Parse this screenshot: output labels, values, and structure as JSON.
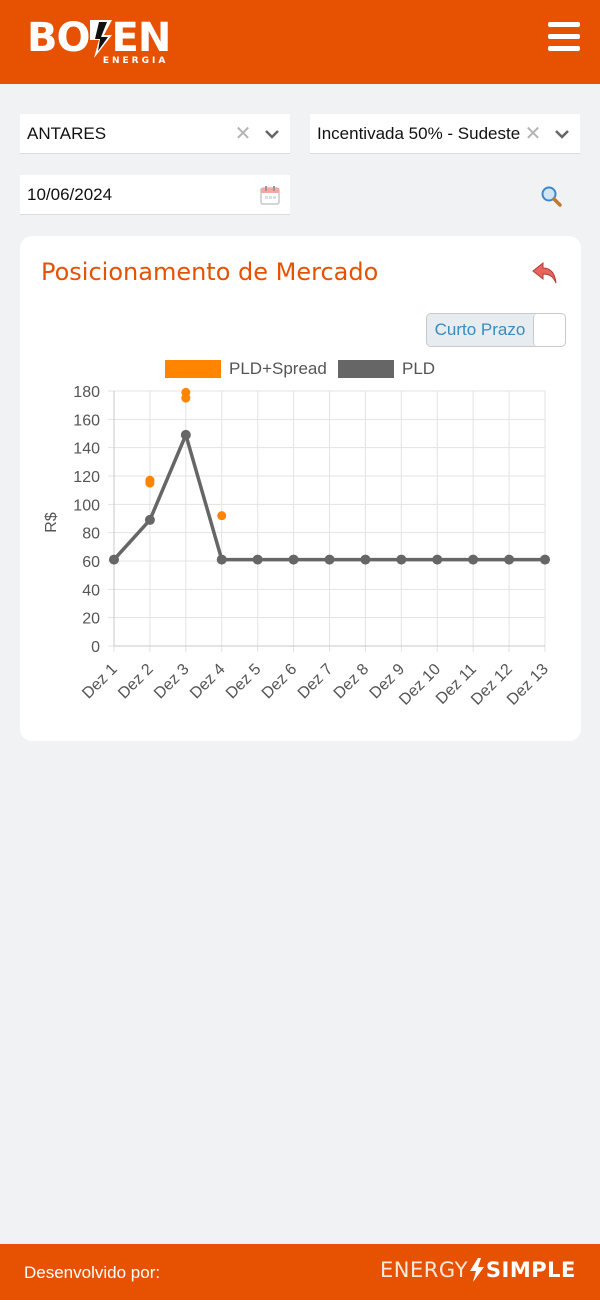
{
  "header": {
    "logo_text_left": "BO",
    "logo_text_right": "EN",
    "logo_subtitle": "ENERGIA",
    "menu_icon": "hamburger-menu-icon",
    "brand_color": "#e65202"
  },
  "filters": {
    "company": {
      "value": "ANTARES"
    },
    "energy_type": {
      "value": "Incentivada 50% - Sudeste"
    },
    "date": {
      "value": "10/06/2024"
    }
  },
  "card": {
    "title": "Posicionamento de Mercado",
    "toggle_label": "Curto Prazo"
  },
  "chart_data": {
    "type": "line",
    "categories": [
      "Dez 1",
      "Dez 2",
      "Dez 3",
      "Dez 4",
      "Dez 5",
      "Dez 6",
      "Dez 7",
      "Dez 8",
      "Dez 9",
      "Dez 10",
      "Dez 11",
      "Dez 12",
      "Dez 13"
    ],
    "ylabel": "R$",
    "ylim": [
      0,
      180
    ],
    "yticks": [
      0,
      20,
      40,
      60,
      80,
      100,
      120,
      140,
      160,
      180
    ],
    "grid": true,
    "legend": "top",
    "series": [
      {
        "name": "PLD+Spread",
        "kind": "scatter",
        "color": "#ff8400",
        "points": [
          {
            "x": "Dez 2",
            "y": 115
          },
          {
            "x": "Dez 2",
            "y": 117
          },
          {
            "x": "Dez 3",
            "y": 175
          },
          {
            "x": "Dez 3",
            "y": 179
          },
          {
            "x": "Dez 4",
            "y": 92
          }
        ]
      },
      {
        "name": "PLD",
        "kind": "line",
        "color": "#666666",
        "values": [
          61,
          89,
          149,
          61,
          61,
          61,
          61,
          61,
          61,
          61,
          61,
          61,
          61
        ]
      }
    ]
  },
  "footer": {
    "developed_by": "Desenvolvido por:",
    "brand_light": "ENERGY",
    "brand_bold": "SIMPLE"
  }
}
